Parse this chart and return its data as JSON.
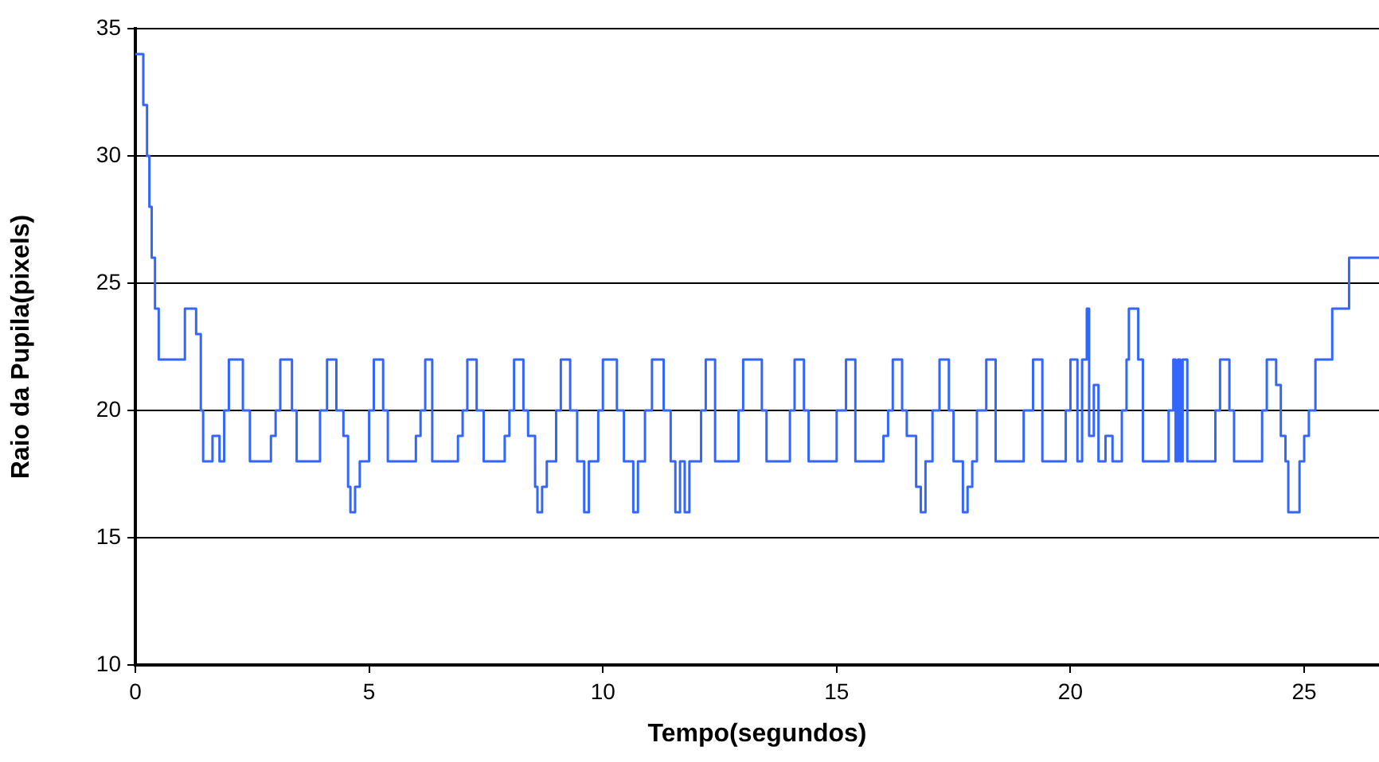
{
  "chart_data": {
    "type": "step",
    "xlabel": "Tempo(segundos)",
    "ylabel": "Raio da Pupila(pixels)",
    "xlim": [
      0,
      26.6
    ],
    "xticks": [
      0,
      5,
      10,
      15,
      20,
      25
    ],
    "ylim": [
      10,
      35
    ],
    "yticks": [
      10,
      15,
      20,
      25,
      30,
      35
    ],
    "grid": "y",
    "legend": false,
    "marker": "none",
    "line_style": "solid",
    "series": [
      {
        "color": "#3366ff",
        "x": [
          0,
          0.17,
          0.25,
          0.3,
          0.35,
          0.42,
          0.5,
          1.06,
          1.3,
          1.4,
          1.45,
          1.65,
          1.8,
          1.9,
          2.0,
          2.3,
          2.45,
          2.9,
          3.0,
          3.1,
          3.35,
          3.45,
          3.95,
          4.1,
          4.3,
          4.45,
          4.55,
          4.6,
          4.7,
          4.8,
          5.0,
          5.1,
          5.3,
          5.4,
          6.0,
          6.1,
          6.2,
          6.35,
          6.9,
          7.0,
          7.1,
          7.3,
          7.45,
          7.9,
          8.0,
          8.1,
          8.3,
          8.4,
          8.55,
          8.6,
          8.7,
          8.8,
          9.0,
          9.1,
          9.3,
          9.45,
          9.6,
          9.7,
          9.9,
          10.0,
          10.3,
          10.45,
          10.65,
          10.75,
          10.9,
          11.05,
          11.3,
          11.45,
          11.55,
          11.65,
          11.75,
          11.85,
          12.1,
          12.2,
          12.4,
          12.9,
          13.0,
          13.4,
          13.5,
          14.0,
          14.1,
          14.3,
          14.4,
          15.0,
          15.2,
          15.4,
          16.0,
          16.1,
          16.2,
          16.4,
          16.5,
          16.7,
          16.8,
          16.9,
          17.05,
          17.2,
          17.4,
          17.5,
          17.7,
          17.8,
          17.9,
          18.0,
          18.2,
          18.4,
          19.0,
          19.2,
          19.4,
          19.9,
          20.0,
          20.15,
          20.25,
          20.35,
          20.4,
          20.5,
          20.6,
          20.75,
          20.9,
          21.1,
          21.2,
          21.25,
          21.45,
          21.55,
          22.1,
          22.2,
          22.25,
          22.3,
          22.35,
          22.4,
          22.5,
          23.1,
          23.2,
          23.4,
          23.5,
          24.1,
          24.2,
          24.4,
          24.5,
          24.6,
          24.66,
          24.9,
          25.0,
          25.1,
          25.24,
          25.6,
          25.96,
          26.6
        ],
        "values": [
          34,
          32,
          30,
          28,
          26,
          24,
          22,
          24,
          23,
          20,
          18,
          19,
          18,
          20,
          22,
          20,
          18,
          19,
          20,
          22,
          20,
          18,
          20,
          22,
          20,
          19,
          17,
          16,
          17,
          18,
          20,
          22,
          20,
          18,
          19,
          20,
          22,
          18,
          19,
          20,
          22,
          20,
          18,
          19,
          20,
          22,
          20,
          19,
          17,
          16,
          17,
          18,
          20,
          22,
          20,
          18,
          16,
          18,
          20,
          22,
          20,
          18,
          16,
          18,
          20,
          22,
          20,
          18,
          16,
          18,
          16,
          18,
          20,
          22,
          18,
          20,
          22,
          20,
          18,
          20,
          22,
          20,
          18,
          20,
          22,
          18,
          19,
          20,
          22,
          20,
          19,
          17,
          16,
          18,
          20,
          22,
          20,
          18,
          16,
          17,
          18,
          20,
          22,
          18,
          20,
          22,
          18,
          20,
          22,
          18,
          22,
          24,
          19,
          21,
          18,
          19,
          18,
          20,
          22,
          24,
          22,
          18,
          20,
          22,
          18,
          22,
          18,
          22,
          18,
          20,
          22,
          20,
          18,
          20,
          22,
          21,
          19,
          18,
          16,
          18,
          19,
          20,
          22,
          24,
          26,
          26
        ]
      }
    ]
  }
}
